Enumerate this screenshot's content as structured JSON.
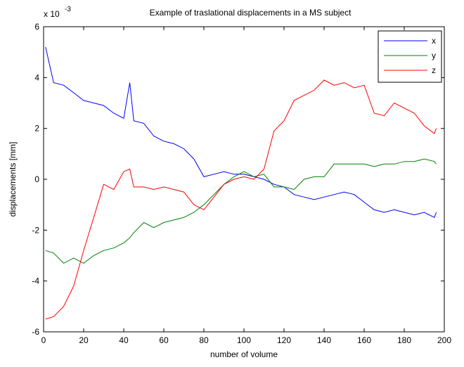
{
  "chart_data": {
    "type": "line",
    "title": "Example of traslational displacements in a MS subject",
    "x_label": "number of volume",
    "y_label": "displacements [mm]",
    "y_multiplier": "x 10",
    "y_multiplier_exponent": "-3",
    "x": [
      1,
      5,
      10,
      15,
      20,
      25,
      30,
      35,
      40,
      43,
      45,
      50,
      55,
      60,
      65,
      70,
      75,
      80,
      85,
      90,
      95,
      100,
      105,
      110,
      115,
      120,
      125,
      130,
      135,
      140,
      145,
      150,
      155,
      160,
      165,
      170,
      175,
      180,
      185,
      190,
      195,
      196
    ],
    "series": [
      {
        "name": "x",
        "color": "#0000ff",
        "values": [
          5.2,
          3.8,
          3.7,
          3.4,
          3.1,
          3.0,
          2.9,
          2.6,
          2.4,
          3.8,
          2.3,
          2.2,
          1.7,
          1.5,
          1.4,
          1.2,
          0.8,
          0.1,
          0.2,
          0.3,
          0.2,
          0.2,
          0.1,
          0,
          -0.2,
          -0.3,
          -0.6,
          -0.7,
          -0.8,
          -0.7,
          -0.6,
          -0.5,
          -0.6,
          -0.9,
          -1.2,
          -1.3,
          -1.2,
          -1.3,
          -1.4,
          -1.3,
          -1.5,
          -1.3
        ]
      },
      {
        "name": "y",
        "color": "#008000",
        "values": [
          -2.8,
          -2.9,
          -3.3,
          -3.1,
          -3.3,
          -3.0,
          -2.8,
          -2.7,
          -2.5,
          -2.3,
          -2.1,
          -1.7,
          -1.9,
          -1.7,
          -1.6,
          -1.5,
          -1.3,
          -1.0,
          -0.6,
          -0.2,
          0.1,
          0.3,
          0.1,
          0.2,
          -0.3,
          -0.3,
          -0.4,
          0,
          0.1,
          0.1,
          0.6,
          0.6,
          0.6,
          0.6,
          0.5,
          0.6,
          0.6,
          0.7,
          0.7,
          0.8,
          0.7,
          0.6
        ]
      },
      {
        "name": "z",
        "color": "#ff0000",
        "values": [
          -5.5,
          -5.4,
          -5.0,
          -4.2,
          -2.8,
          -1.5,
          -0.2,
          -0.4,
          0.3,
          0.4,
          -0.3,
          -0.3,
          -0.4,
          -0.3,
          -0.4,
          -0.5,
          -1.0,
          -1.2,
          -0.7,
          -0.2,
          0,
          0.1,
          0,
          0.4,
          1.9,
          2.3,
          3.1,
          3.3,
          3.5,
          3.9,
          3.7,
          3.8,
          3.6,
          3.7,
          2.6,
          2.5,
          3.0,
          2.8,
          2.6,
          2.1,
          1.8,
          2.0
        ]
      }
    ],
    "xlim": [
      0,
      200
    ],
    "xticks": [
      0,
      20,
      40,
      60,
      80,
      100,
      120,
      140,
      160,
      180,
      200
    ],
    "ylim": [
      -6,
      6
    ],
    "yticks": [
      -6,
      -4,
      -2,
      0,
      2,
      4,
      6
    ],
    "grid": false,
    "legend": "top-right"
  }
}
